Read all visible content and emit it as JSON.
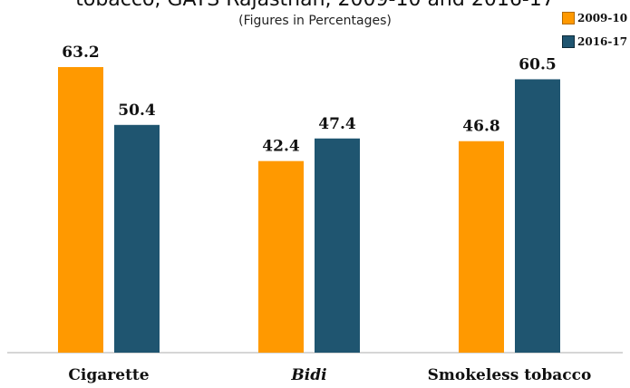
{
  "chart_data": {
    "type": "bar",
    "title": "tobacco, GATS Rajasthan, 2009-10 and 2016-17",
    "subtitle": "(Figures in Percentages)",
    "categories": [
      "Cigarette",
      "Bidi",
      "Smokeless tobacco"
    ],
    "category_italic": [
      false,
      true,
      false
    ],
    "series": [
      {
        "name": "2009-10",
        "color": "#FF9900",
        "values": [
          63.2,
          42.4,
          46.8
        ]
      },
      {
        "name": "2016-17",
        "color": "#1F5570",
        "values": [
          50.4,
          47.4,
          60.5
        ]
      }
    ],
    "ylim": [
      0,
      63.2
    ],
    "grid": false,
    "legend_position": "top-right"
  }
}
